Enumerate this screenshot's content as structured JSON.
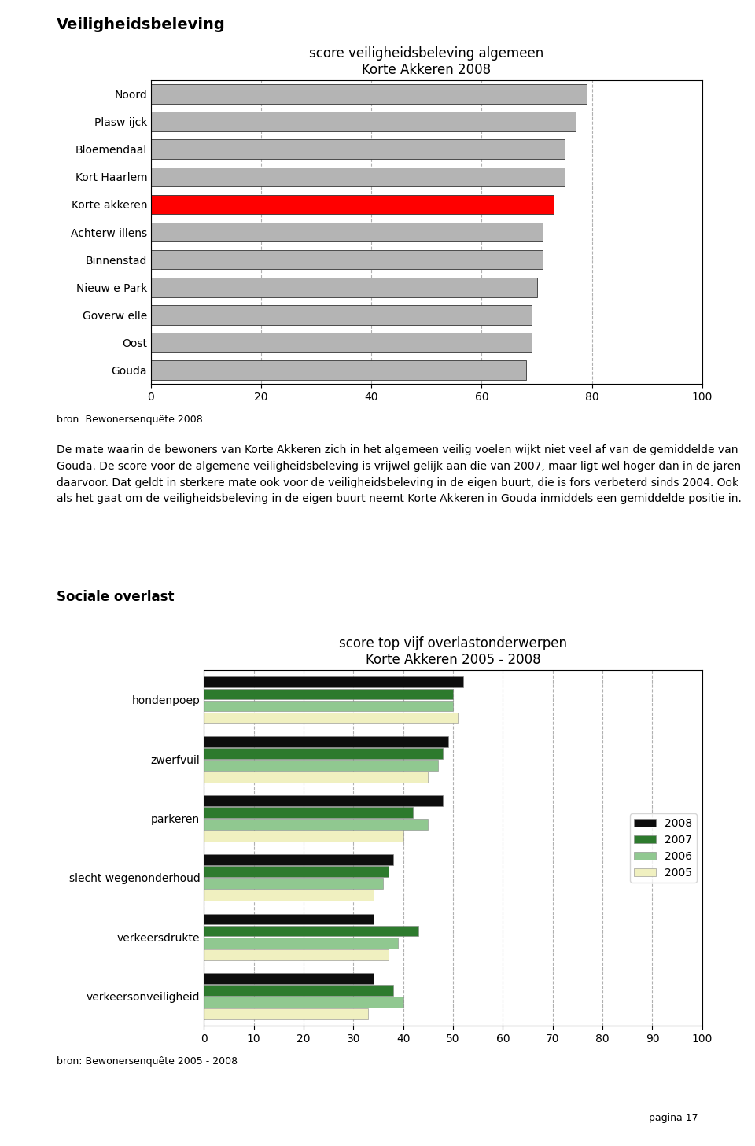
{
  "title": "Veiligheidsbeleving",
  "annotations": [
    "De mate waarin de bewoners van Korte Akkeren zich in het algemeen veilig voelen wijkt niet veel af van de gemiddelde van Gouda. De score voor de algemene veiligheidsbeleving is vrijwel gelijk aan die van 2007, maar ligt wel hoger dan in de jaren daarvoor. Dat geldt in sterkere mate ook voor de veiligheidsbeleving in de eigen buurt, die is fors verbeterd sinds 2004. Ook als het gaat om de veiligheidsbeleving in de eigen buurt neemt Korte Akkeren in Gouda inmiddels een gemiddelde positie in.",
    "Sociale overlast",
    "pagina 17"
  ],
  "chart_data": [
    {
      "type": "bar",
      "orientation": "horizontal",
      "title": "score veiligheidsbeleving algemeen\nKorte Akkeren 2008",
      "categories": [
        "Noord",
        "Plasw ijck",
        "Bloemendaal",
        "Kort Haarlem",
        "Korte akkeren",
        "Achterw illens",
        "Binnenstad",
        "Nieuw e Park",
        "Goverw elle",
        "Oost",
        "Gouda"
      ],
      "values": [
        79,
        77,
        75,
        75,
        73,
        71,
        71,
        70,
        69,
        69,
        68
      ],
      "colors": [
        "#b4b4b4",
        "#b4b4b4",
        "#b4b4b4",
        "#b4b4b4",
        "#ff0000",
        "#b4b4b4",
        "#b4b4b4",
        "#b4b4b4",
        "#b4b4b4",
        "#b4b4b4",
        "#b4b4b4"
      ],
      "xlim": [
        0,
        100
      ],
      "xticks": [
        0,
        20,
        40,
        60,
        80,
        100
      ],
      "grid": true,
      "annotations": [
        "bron: Bewonersenquête 2008"
      ]
    },
    {
      "type": "bar",
      "orientation": "horizontal",
      "title": "score top vijf overlastonderwerpen\nKorte Akkeren 2005 - 2008",
      "categories": [
        "hondenpoep",
        "zwerfvuil",
        "parkeren",
        "slecht wegenonderhoud",
        "verkeersdrukte",
        "verkeersonveiligheid"
      ],
      "series": [
        {
          "name": "2008",
          "color": "#0d0d0d",
          "values": [
            52,
            49,
            48,
            38,
            34,
            34
          ]
        },
        {
          "name": "2007",
          "color": "#2d7a2d",
          "values": [
            50,
            48,
            42,
            37,
            43,
            38
          ]
        },
        {
          "name": "2006",
          "color": "#90c890",
          "values": [
            50,
            47,
            45,
            36,
            39,
            40
          ]
        },
        {
          "name": "2005",
          "color": "#f0f0c0",
          "values": [
            51,
            45,
            40,
            34,
            37,
            33
          ]
        }
      ],
      "xlim": [
        0,
        100
      ],
      "xticks": [
        0,
        10,
        20,
        30,
        40,
        50,
        60,
        70,
        80,
        90,
        100
      ],
      "grid": true,
      "legend": "center right",
      "annotations": [
        "bron: Bewonersenquête 2005 - 2008"
      ]
    }
  ]
}
